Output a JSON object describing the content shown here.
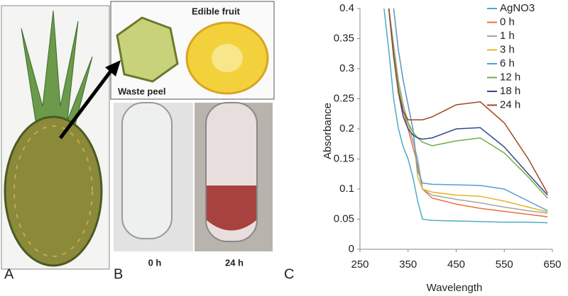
{
  "panels": {
    "a": {
      "letter": "A"
    },
    "b": {
      "letter": "B",
      "fruit_label": "Edible fruit",
      "peel_label": "Waste peel",
      "tube_left": "0 h",
      "tube_right": "24 h"
    },
    "c": {
      "letter": "C"
    }
  },
  "chart_data": {
    "type": "line",
    "x_label": "Wavelength",
    "y_label": "Absorbance",
    "x": [
      300,
      310,
      320,
      330,
      340,
      350,
      360,
      370,
      380,
      400,
      450,
      500,
      550,
      600,
      640
    ],
    "series": [
      {
        "name": "AgNO3",
        "color": "#4bacc6",
        "values": [
          0.4,
          0.33,
          0.25,
          0.2,
          0.17,
          0.15,
          0.12,
          0.08,
          0.05,
          0.048,
          0.047,
          0.046,
          0.045,
          0.045,
          0.044
        ]
      },
      {
        "name": "0 h",
        "color": "#e8703a",
        "values": [
          null,
          0.4,
          0.33,
          0.27,
          0.23,
          0.2,
          0.17,
          0.14,
          0.1,
          0.085,
          0.075,
          0.068,
          0.063,
          0.058,
          0.054
        ]
      },
      {
        "name": "1 h",
        "color": "#a5a5a5",
        "values": [
          null,
          0.4,
          0.34,
          0.28,
          0.24,
          0.21,
          0.18,
          0.15,
          0.1,
          0.09,
          0.083,
          0.077,
          0.07,
          0.064,
          0.06
        ]
      },
      {
        "name": "3 h",
        "color": "#e6b422",
        "values": [
          null,
          null,
          0.4,
          0.33,
          0.28,
          0.24,
          0.2,
          0.12,
          0.1,
          0.095,
          0.09,
          0.088,
          0.08,
          0.07,
          0.062
        ]
      },
      {
        "name": "6 h",
        "color": "#5b9bd5",
        "values": [
          null,
          null,
          0.4,
          0.33,
          0.28,
          0.24,
          0.2,
          0.13,
          0.11,
          0.108,
          0.107,
          0.106,
          0.1,
          0.08,
          0.064
        ]
      },
      {
        "name": "12 h",
        "color": "#70ad47",
        "values": [
          null,
          0.4,
          0.33,
          0.27,
          0.23,
          0.21,
          0.195,
          0.185,
          0.178,
          0.172,
          0.18,
          0.185,
          0.16,
          0.12,
          0.085
        ]
      },
      {
        "name": "18 h",
        "color": "#2e4a8c",
        "values": [
          null,
          0.4,
          0.32,
          0.26,
          0.22,
          0.2,
          0.19,
          0.185,
          0.183,
          0.185,
          0.2,
          0.202,
          0.17,
          0.125,
          0.09
        ]
      },
      {
        "name": "24 h",
        "color": "#9c4a20",
        "values": [
          null,
          0.4,
          0.32,
          0.26,
          0.23,
          0.215,
          0.215,
          0.215,
          0.215,
          0.22,
          0.24,
          0.245,
          0.21,
          0.15,
          0.093
        ]
      }
    ],
    "xlim": [
      250,
      650
    ],
    "xticks": [
      250,
      350,
      450,
      550,
      650
    ],
    "ylim": [
      0,
      0.4
    ],
    "yticks": [
      0,
      0.05,
      0.1,
      0.15,
      0.2,
      0.25,
      0.3,
      0.35,
      0.4
    ],
    "grid": false,
    "legend": "right"
  }
}
